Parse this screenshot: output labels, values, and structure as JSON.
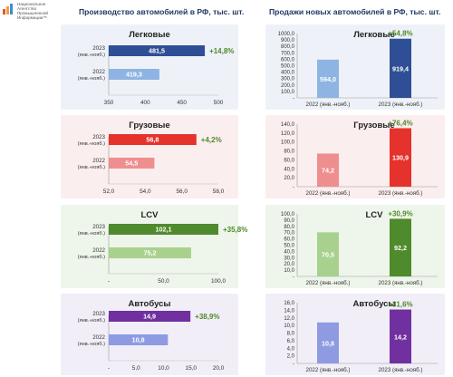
{
  "logo": {
    "lines": [
      "Национальное",
      "Агентство",
      "Промышленной",
      "Информации™"
    ],
    "colors": [
      "#e4572e",
      "#f2a03d",
      "#3b8ed3"
    ]
  },
  "left_title": "Производство автомобилей в РФ, тыс. шт.",
  "right_title": "Продажи новых автомобилей в РФ, тыс. шт.",
  "chart_data": [
    {
      "type": "bar",
      "orientation": "horizontal",
      "title": "Легковые",
      "categories": [
        "2023\n(янв.-нояб.)",
        "2022\n(янв.-нояб.)"
      ],
      "values": [
        481.5,
        419.3
      ],
      "labels": [
        "481,5",
        "419,3"
      ],
      "xlim": [
        350,
        500
      ],
      "ticks": [
        350,
        400,
        450,
        500
      ],
      "tick_labels": [
        "350",
        "400",
        "450",
        "500"
      ],
      "growth": "+14,8%",
      "colors": [
        "#2e4f95",
        "#8db4e2"
      ],
      "panel_bg": "#eef2f8"
    },
    {
      "type": "bar",
      "orientation": "horizontal",
      "title": "Грузовые",
      "categories": [
        "2023\n(янв.-нояб.)",
        "2022\n(янв.-нояб.)"
      ],
      "values": [
        56.8,
        54.5
      ],
      "labels": [
        "56,8",
        "54,5"
      ],
      "xlim": [
        52,
        58
      ],
      "ticks": [
        52,
        54,
        56,
        58
      ],
      "tick_labels": [
        "52,0",
        "54,0",
        "56,0",
        "58,0"
      ],
      "growth": "+4,2%",
      "colors": [
        "#e5322d",
        "#ef8e8e"
      ],
      "panel_bg": "#fbeeee"
    },
    {
      "type": "bar",
      "orientation": "horizontal",
      "title": "LCV",
      "categories": [
        "2023\n(янв.-нояб.)",
        "2022\n(янв.-нояб.)"
      ],
      "values": [
        102.1,
        75.2
      ],
      "labels": [
        "102,1",
        "75,2"
      ],
      "xlim": [
        0,
        100
      ],
      "ticks": [
        0,
        50,
        100
      ],
      "tick_labels": [
        "-",
        "50,0",
        "100,0"
      ],
      "growth": "+35,8%",
      "colors": [
        "#4f8a2c",
        "#a9d18e"
      ],
      "panel_bg": "#eef5ea"
    },
    {
      "type": "bar",
      "orientation": "horizontal",
      "title": "Автобусы",
      "categories": [
        "2023\n(янв.-нояб.)",
        "2022\n(янв.-нояб.)"
      ],
      "values": [
        14.9,
        10.8
      ],
      "labels": [
        "14,9",
        "10,8"
      ],
      "xlim": [
        0,
        20
      ],
      "ticks": [
        0,
        5,
        10,
        15,
        20
      ],
      "tick_labels": [
        "-",
        "5,0",
        "10,0",
        "15,0",
        "20,0"
      ],
      "growth": "+38,9%",
      "colors": [
        "#7030a0",
        "#8e9be3"
      ],
      "panel_bg": "#f1eef8"
    },
    {
      "type": "bar",
      "orientation": "vertical",
      "title": "Легковые",
      "categories": [
        "2022 (янв.-нояб.)",
        "2023 (янв.-нояб.)"
      ],
      "values": [
        594.0,
        919.4
      ],
      "labels": [
        "594,0",
        "919,4"
      ],
      "ylim": [
        0,
        1000
      ],
      "ticks": [
        0,
        100,
        200,
        300,
        400,
        500,
        600,
        700,
        800,
        900,
        1000
      ],
      "tick_labels": [
        "-",
        "100,0",
        "200,0",
        "300,0",
        "400,0",
        "500,0",
        "600,0",
        "700,0",
        "800,0",
        "900,0",
        "1000,0"
      ],
      "growth": "+54,8%",
      "colors": [
        "#8db4e2",
        "#2e4f95"
      ],
      "panel_bg": "#eef2f8"
    },
    {
      "type": "bar",
      "orientation": "vertical",
      "title": "Грузовые",
      "categories": [
        "2022 (янв.-нояб.)",
        "2023 (янв.-нояб.)"
      ],
      "values": [
        74.2,
        130.9
      ],
      "labels": [
        "74,2",
        "130,9"
      ],
      "ylim": [
        0,
        140
      ],
      "ticks": [
        0,
        20,
        40,
        60,
        80,
        100,
        120,
        140
      ],
      "tick_labels": [
        "-",
        "20,0",
        "40,0",
        "60,0",
        "80,0",
        "100,0",
        "120,0",
        "140,0"
      ],
      "growth": "+76,4%",
      "colors": [
        "#ef8e8e",
        "#e5322d"
      ],
      "panel_bg": "#fbeeee"
    },
    {
      "type": "bar",
      "orientation": "vertical",
      "title": "LCV",
      "categories": [
        "2022 (янв.-нояб.)",
        "2023 (янв.-нояб.)"
      ],
      "values": [
        70.5,
        92.2
      ],
      "labels": [
        "70,5",
        "92,2"
      ],
      "ylim": [
        0,
        100
      ],
      "ticks": [
        0,
        10,
        20,
        30,
        40,
        50,
        60,
        70,
        80,
        90,
        100
      ],
      "tick_labels": [
        "-",
        "10,0",
        "20,0",
        "30,0",
        "40,0",
        "50,0",
        "60,0",
        "70,0",
        "80,0",
        "90,0",
        "100,0"
      ],
      "growth": "+30,9%",
      "colors": [
        "#a9d18e",
        "#4f8a2c"
      ],
      "panel_bg": "#eef5ea"
    },
    {
      "type": "bar",
      "orientation": "vertical",
      "title": "Автобусы",
      "categories": [
        "2022 (янв.-нояб.)",
        "2023 (янв.-нояб.)"
      ],
      "values": [
        10.8,
        14.2
      ],
      "labels": [
        "10,8",
        "14,2"
      ],
      "ylim": [
        0,
        16
      ],
      "ticks": [
        0,
        2,
        4,
        6,
        8,
        10,
        12,
        14,
        16
      ],
      "tick_labels": [
        "-",
        "2,0",
        "4,0",
        "6,0",
        "8,0",
        "10,0",
        "12,0",
        "14,0",
        "16,0"
      ],
      "growth": "+31,6%",
      "colors": [
        "#8e9be3",
        "#7030a0"
      ],
      "panel_bg": "#f1eef8"
    }
  ]
}
